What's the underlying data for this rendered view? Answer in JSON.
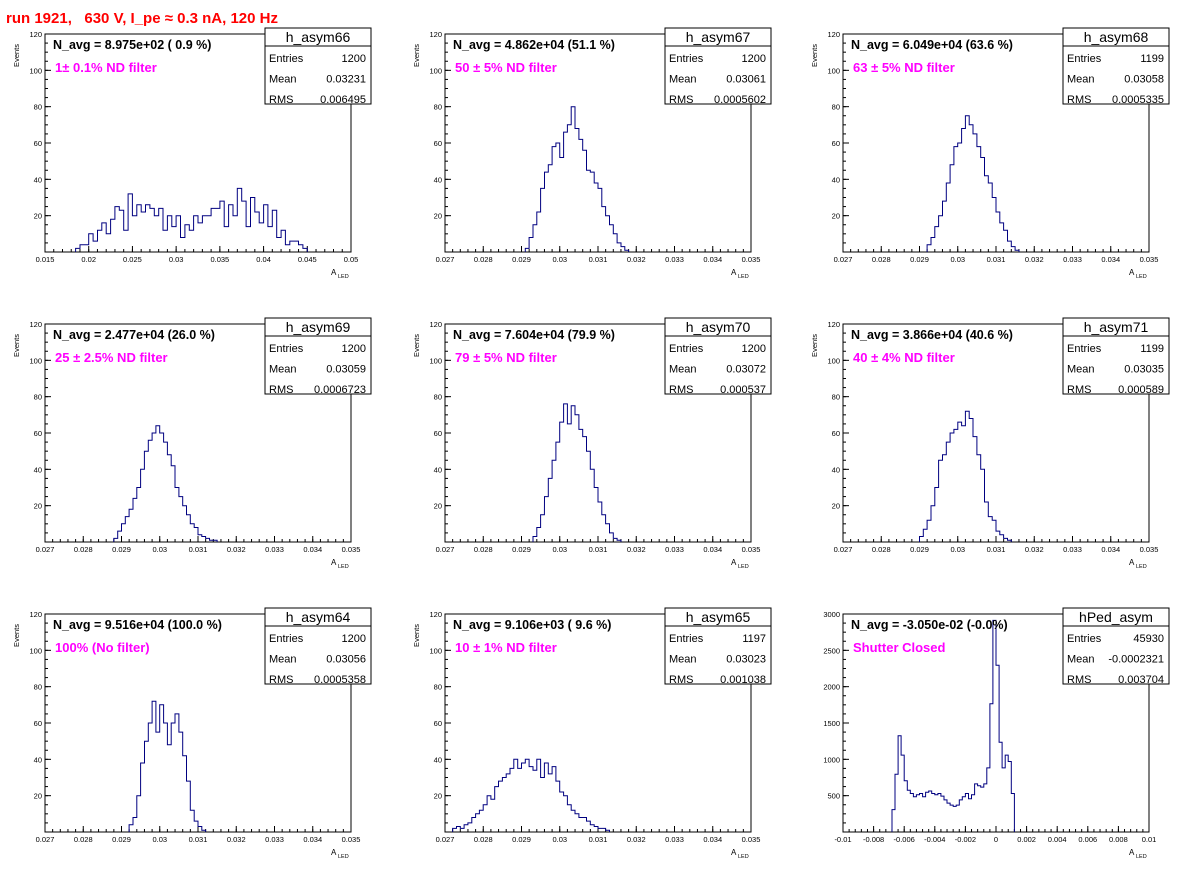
{
  "run_title": "run 1921,   630 V, I_pe ≈ 0.3 nA, 120 Hz",
  "colors": {
    "histogram": "#000080",
    "title": "#ff0000",
    "annotation": "#ff00ff"
  },
  "chart_data": [
    {
      "type": "bar",
      "histogram_style": "step",
      "stats_title": "h_asym66",
      "stats": [
        [
          "Entries",
          "1200"
        ],
        [
          "Mean",
          "0.03231"
        ],
        [
          "RMS",
          "0.006495"
        ]
      ],
      "navg_label": "N_avg = 8.975e+02 ( 0.9 %)",
      "annotation": "1± 0.1% ND filter",
      "ylabel": "Events",
      "xlabel": "A",
      "xlabel_sub": "LED",
      "xlim": [
        0.015,
        0.05
      ],
      "ylim": [
        0,
        120
      ],
      "xticks": [
        "0.015",
        "0.02",
        "0.025",
        "0.03",
        "0.035",
        "0.04",
        "0.045",
        "0.05"
      ],
      "yticks": [
        "20",
        "40",
        "60",
        "80",
        "100",
        "120"
      ],
      "x_start": 0.0185,
      "bin_width": 0.0005,
      "values": [
        2,
        4,
        4,
        10,
        6,
        12,
        16,
        10,
        18,
        25,
        23,
        12,
        32,
        20,
        26,
        22,
        26,
        24,
        20,
        24,
        12,
        20,
        14,
        20,
        8,
        15,
        12,
        20,
        16,
        20,
        20,
        24,
        24,
        28,
        14,
        26,
        20,
        35,
        28,
        14,
        30,
        22,
        16,
        26,
        14,
        23,
        8,
        12,
        4,
        6,
        6,
        4,
        2
      ]
    },
    {
      "type": "bar",
      "histogram_style": "step",
      "stats_title": "h_asym67",
      "stats": [
        [
          "Entries",
          "1200"
        ],
        [
          "Mean",
          "0.03061"
        ],
        [
          "RMS",
          "0.0005602"
        ]
      ],
      "navg_label": "N_avg = 4.862e+04 (51.1 %)",
      "annotation": "50 ± 5% ND filter",
      "ylabel": "Events",
      "xlabel": "A",
      "xlabel_sub": "LED",
      "xlim": [
        0.027,
        0.035
      ],
      "ylim": [
        0,
        120
      ],
      "xticks": [
        "0.027",
        "0.028",
        "0.029",
        "0.03",
        "0.031",
        "0.032",
        "0.033",
        "0.034",
        "0.035"
      ],
      "yticks": [
        "20",
        "40",
        "60",
        "80",
        "100",
        "120"
      ],
      "x_start": 0.0291,
      "bin_width": 0.0001,
      "values": [
        2,
        8,
        15,
        22,
        35,
        44,
        48,
        58,
        60,
        52,
        66,
        70,
        80,
        68,
        62,
        56,
        45,
        44,
        38,
        35,
        25,
        20,
        15,
        10,
        5,
        3,
        1
      ]
    },
    {
      "type": "bar",
      "histogram_style": "step",
      "stats_title": "h_asym68",
      "stats": [
        [
          "Entries",
          "1199"
        ],
        [
          "Mean",
          "0.03058"
        ],
        [
          "RMS",
          "0.0005335"
        ]
      ],
      "navg_label": "N_avg = 6.049e+04 (63.6 %)",
      "annotation": "63 ± 5% ND filter",
      "ylabel": "Events",
      "xlabel": "A",
      "xlabel_sub": "LED",
      "xlim": [
        0.027,
        0.035
      ],
      "ylim": [
        0,
        120
      ],
      "xticks": [
        "0.027",
        "0.028",
        "0.029",
        "0.03",
        "0.031",
        "0.032",
        "0.033",
        "0.034",
        "0.035"
      ],
      "yticks": [
        "20",
        "40",
        "60",
        "80",
        "100",
        "120"
      ],
      "x_start": 0.0292,
      "bin_width": 0.0001,
      "values": [
        4,
        8,
        14,
        20,
        28,
        38,
        48,
        58,
        60,
        68,
        75,
        70,
        65,
        58,
        52,
        42,
        38,
        30,
        22,
        16,
        12,
        6,
        3,
        1
      ]
    },
    {
      "type": "bar",
      "histogram_style": "step",
      "stats_title": "h_asym69",
      "stats": [
        [
          "Entries",
          "1200"
        ],
        [
          "Mean",
          "0.03059"
        ],
        [
          "RMS",
          "0.0006723"
        ]
      ],
      "navg_label": "N_avg = 2.477e+04 (26.0 %)",
      "annotation": "25 ± 2.5% ND filter",
      "ylabel": "Events",
      "xlabel": "A",
      "xlabel_sub": "LED",
      "xlim": [
        0.027,
        0.035
      ],
      "ylim": [
        0,
        120
      ],
      "xticks": [
        "0.027",
        "0.028",
        "0.029",
        "0.03",
        "0.031",
        "0.032",
        "0.033",
        "0.034",
        "0.035"
      ],
      "yticks": [
        "20",
        "40",
        "60",
        "80",
        "100",
        "120"
      ],
      "x_start": 0.0288,
      "bin_width": 0.0001,
      "values": [
        2,
        6,
        10,
        14,
        18,
        24,
        30,
        40,
        50,
        56,
        60,
        64,
        60,
        55,
        48,
        42,
        30,
        25,
        20,
        15,
        10,
        8,
        4,
        3,
        2,
        1,
        1
      ]
    },
    {
      "type": "bar",
      "histogram_style": "step",
      "stats_title": "h_asym70",
      "stats": [
        [
          "Entries",
          "1200"
        ],
        [
          "Mean",
          "0.03072"
        ],
        [
          "RMS",
          "0.000537"
        ]
      ],
      "navg_label": "N_avg = 7.604e+04 (79.9 %)",
      "annotation": "79 ± 5% ND filter",
      "ylabel": "Events",
      "xlabel": "A",
      "xlabel_sub": "LED",
      "xlim": [
        0.027,
        0.035
      ],
      "ylim": [
        0,
        120
      ],
      "xticks": [
        "0.027",
        "0.028",
        "0.029",
        "0.03",
        "0.031",
        "0.032",
        "0.033",
        "0.034",
        "0.035"
      ],
      "yticks": [
        "20",
        "40",
        "60",
        "80",
        "100",
        "120"
      ],
      "x_start": 0.0293,
      "bin_width": 0.0001,
      "values": [
        3,
        8,
        15,
        25,
        35,
        45,
        55,
        66,
        76,
        65,
        75,
        70,
        62,
        58,
        50,
        40,
        30,
        22,
        15,
        10,
        5,
        2,
        1
      ]
    },
    {
      "type": "bar",
      "histogram_style": "step",
      "stats_title": "h_asym71",
      "stats": [
        [
          "Entries",
          "1199"
        ],
        [
          "Mean",
          "0.03035"
        ],
        [
          "RMS",
          "0.000589"
        ]
      ],
      "navg_label": "N_avg = 3.866e+04 (40.6 %)",
      "annotation": "40 ± 4% ND filter",
      "ylabel": "Events",
      "xlabel": "A",
      "xlabel_sub": "LED",
      "xlim": [
        0.027,
        0.035
      ],
      "ylim": [
        0,
        120
      ],
      "xticks": [
        "0.027",
        "0.028",
        "0.029",
        "0.03",
        "0.031",
        "0.032",
        "0.033",
        "0.034",
        "0.035"
      ],
      "yticks": [
        "20",
        "40",
        "60",
        "80",
        "100",
        "120"
      ],
      "x_start": 0.029,
      "bin_width": 0.0001,
      "values": [
        3,
        7,
        12,
        20,
        30,
        45,
        48,
        55,
        60,
        62,
        66,
        64,
        72,
        68,
        58,
        48,
        40,
        22,
        14,
        12,
        6,
        4,
        2,
        1
      ]
    },
    {
      "type": "bar",
      "histogram_style": "step",
      "stats_title": "h_asym64",
      "stats": [
        [
          "Entries",
          "1200"
        ],
        [
          "Mean",
          "0.03056"
        ],
        [
          "RMS",
          "0.0005358"
        ]
      ],
      "navg_label": "N_avg = 9.516e+04 (100.0 %)",
      "annotation": "100% (No filter)",
      "ylabel": "Events",
      "xlabel": "A",
      "xlabel_sub": "LED",
      "xlim": [
        0.027,
        0.035
      ],
      "ylim": [
        0,
        120
      ],
      "xticks": [
        "0.027",
        "0.028",
        "0.029",
        "0.03",
        "0.031",
        "0.032",
        "0.033",
        "0.034",
        "0.035"
      ],
      "yticks": [
        "20",
        "40",
        "60",
        "80",
        "100",
        "120"
      ],
      "x_start": 0.0292,
      "bin_width": 0.0001,
      "values": [
        4,
        8,
        20,
        38,
        50,
        60,
        72,
        55,
        70,
        60,
        48,
        60,
        65,
        55,
        42,
        28,
        12,
        6,
        3,
        1
      ]
    },
    {
      "type": "bar",
      "histogram_style": "step",
      "stats_title": "h_asym65",
      "stats": [
        [
          "Entries",
          "1197"
        ],
        [
          "Mean",
          "0.03023"
        ],
        [
          "RMS",
          "0.001038"
        ]
      ],
      "navg_label": "N_avg = 9.106e+03 ( 9.6 %)",
      "annotation": "10 ± 1% ND filter",
      "ylabel": "Events",
      "xlabel": "A",
      "xlabel_sub": "LED",
      "xlim": [
        0.027,
        0.035
      ],
      "ylim": [
        0,
        120
      ],
      "xticks": [
        "0.027",
        "0.028",
        "0.029",
        "0.03",
        "0.031",
        "0.032",
        "0.033",
        "0.034",
        "0.035"
      ],
      "yticks": [
        "20",
        "40",
        "60",
        "80",
        "100",
        "120"
      ],
      "x_start": 0.0272,
      "bin_width": 0.0001,
      "values": [
        2,
        3,
        2,
        4,
        5,
        8,
        10,
        12,
        15,
        20,
        18,
        25,
        28,
        30,
        32,
        35,
        40,
        35,
        38,
        40,
        36,
        34,
        40,
        30,
        38,
        32,
        36,
        28,
        22,
        20,
        15,
        12,
        10,
        8,
        8,
        6,
        4,
        3,
        2,
        2,
        1
      ]
    },
    {
      "type": "bar",
      "histogram_style": "step",
      "stats_title": "hPed_asym",
      "stats": [
        [
          "Entries",
          "45930"
        ],
        [
          "Mean",
          "-0.0002321"
        ],
        [
          "RMS",
          "0.003704"
        ]
      ],
      "navg_label": "N_avg = -3.050e-02 (-0.0%)",
      "annotation": "Shutter Closed",
      "ylabel": "",
      "xlabel": "A",
      "xlabel_sub": "LED",
      "xlim": [
        -0.01,
        0.01
      ],
      "ylim": [
        0,
        3400
      ],
      "xticks": [
        "-0.01",
        "-0.008",
        "-0.006",
        "-0.004",
        "-0.002",
        "0",
        "0.002",
        "0.004",
        "0.006",
        "0.008",
        "0.01"
      ],
      "yticks": [
        "500",
        "1000",
        "1500",
        "2000",
        "2500",
        "3000"
      ],
      "x_start": -0.0068,
      "bin_width": 0.0002,
      "values": [
        350,
        900,
        1500,
        1200,
        800,
        650,
        600,
        550,
        580,
        600,
        550,
        620,
        640,
        600,
        580,
        600,
        560,
        500,
        450,
        420,
        400,
        420,
        500,
        550,
        600,
        520,
        580,
        750,
        720,
        700,
        750,
        1000,
        2000,
        3300,
        2600,
        1400,
        1000,
        1200,
        1100,
        600
      ]
    }
  ]
}
